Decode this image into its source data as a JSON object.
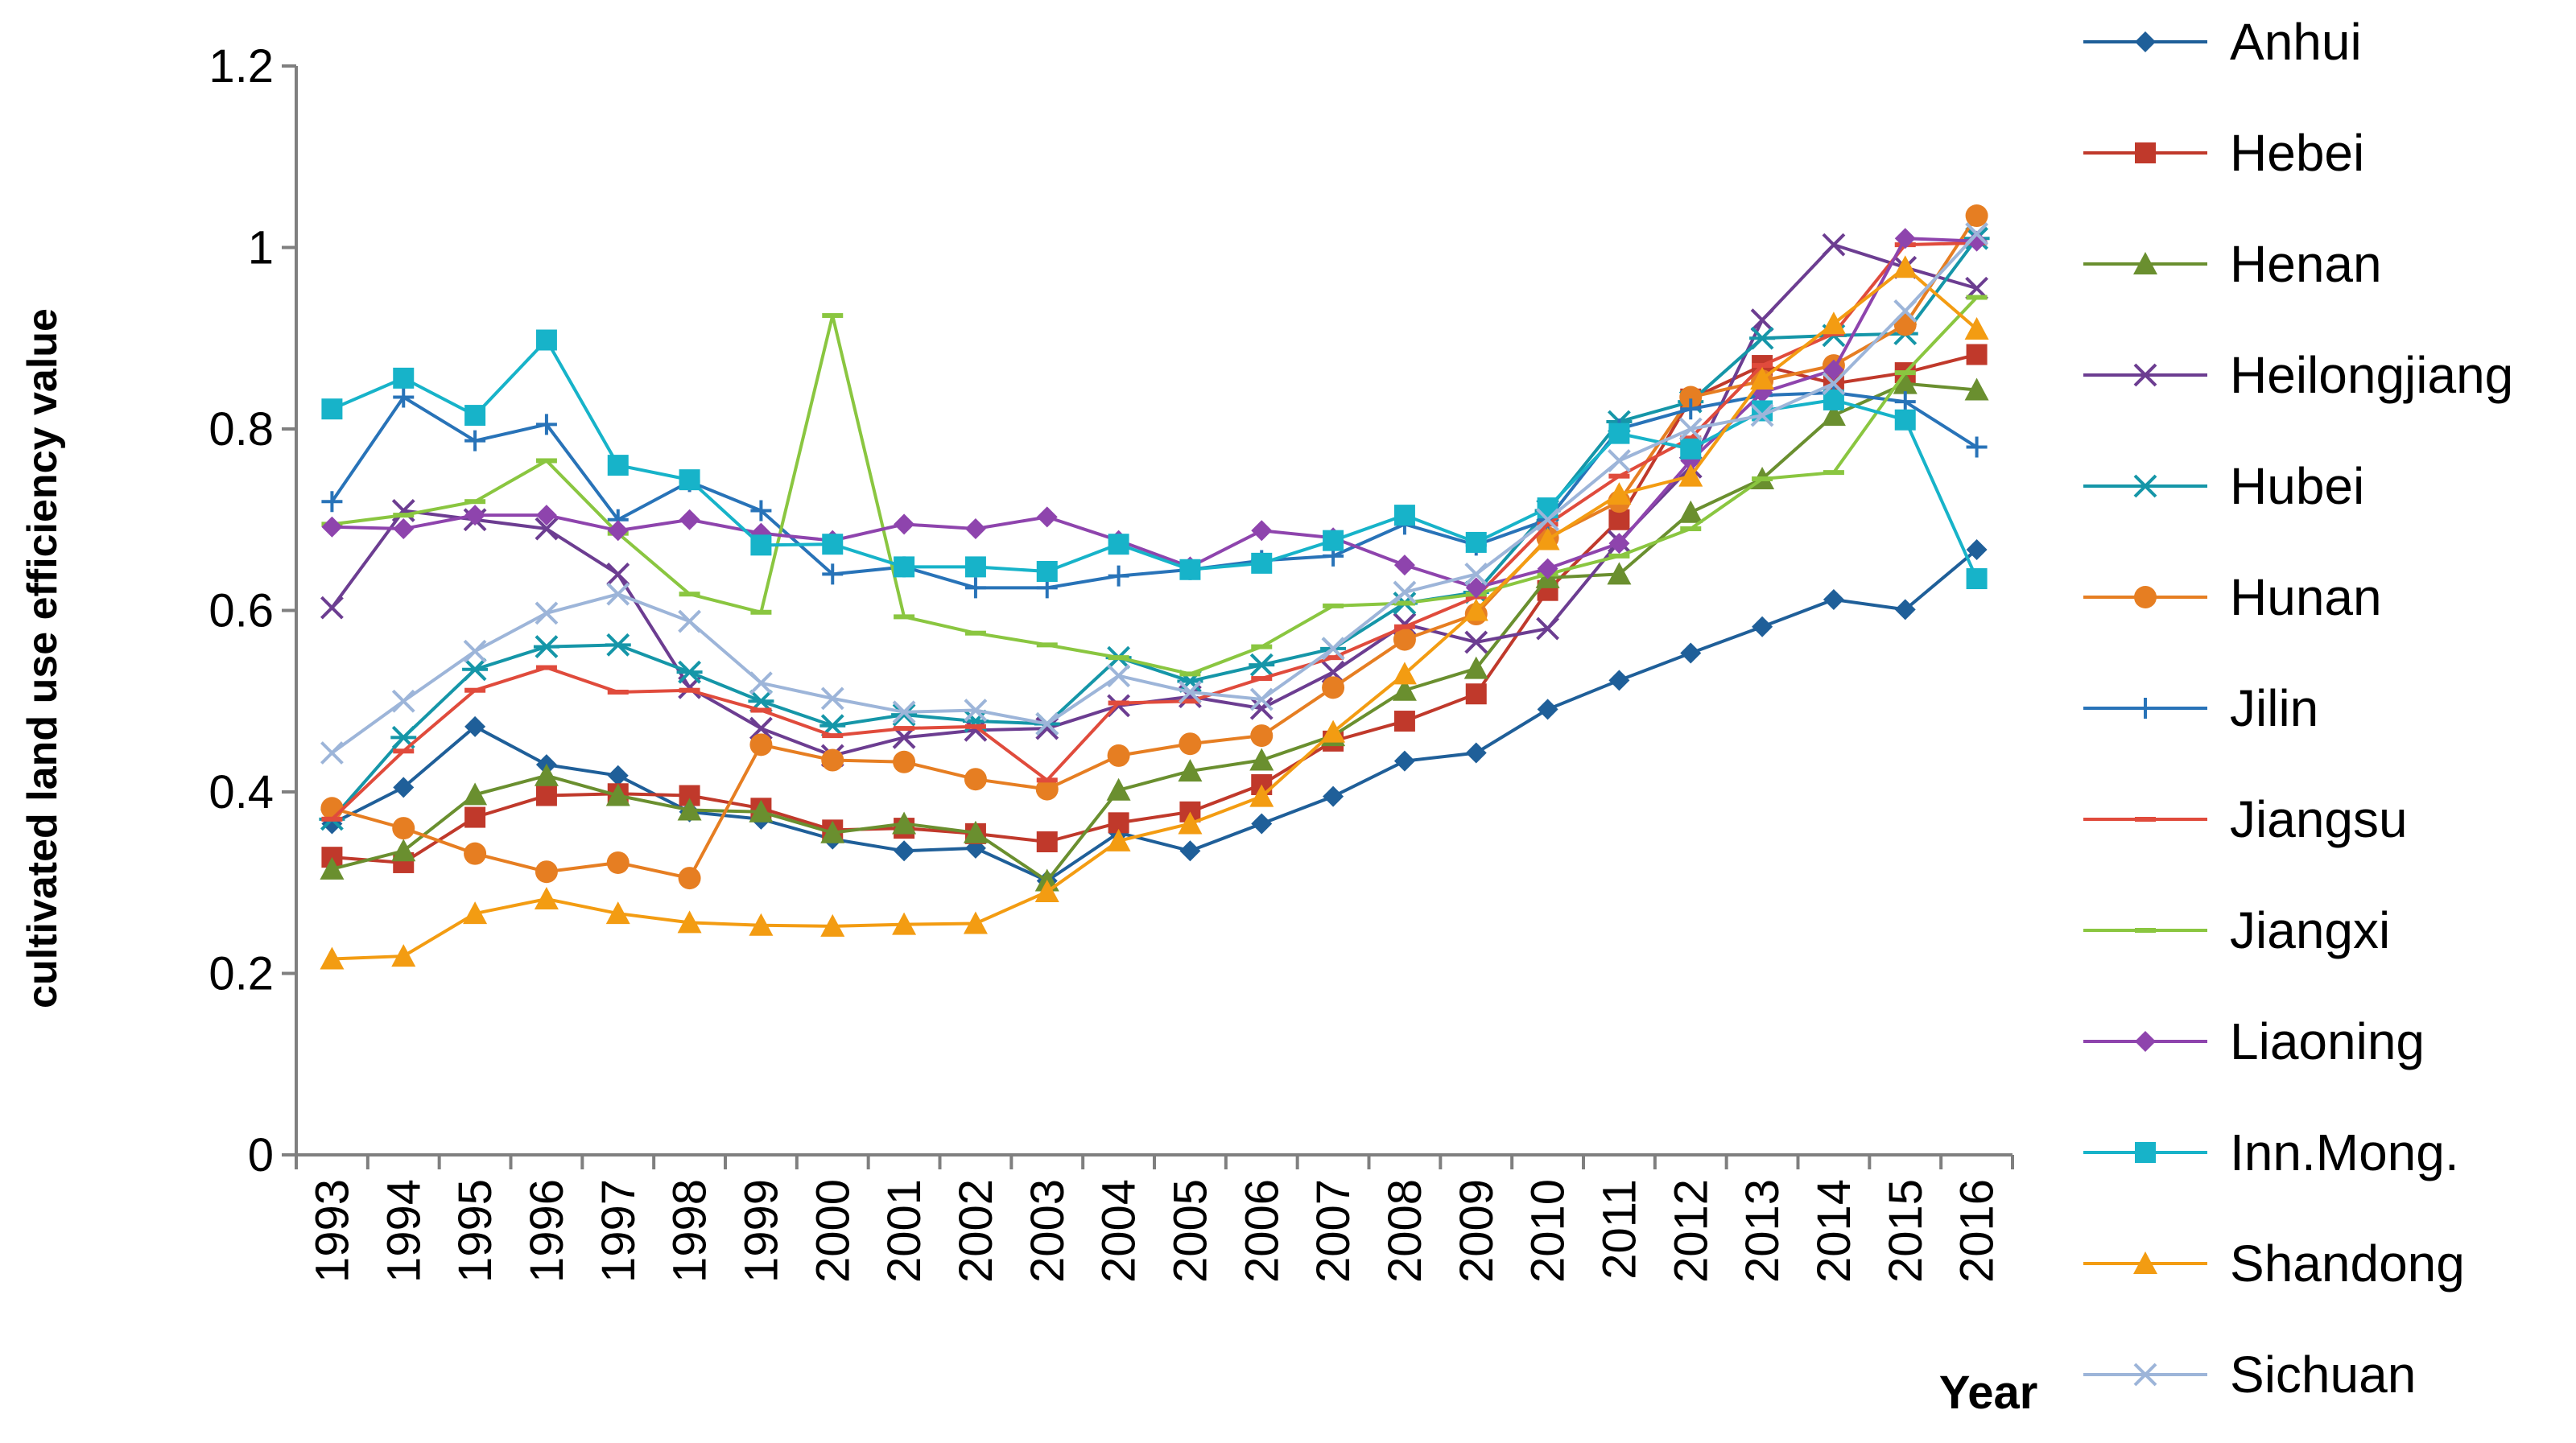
{
  "chart_data": {
    "type": "line",
    "title": "",
    "xlabel": "Year",
    "ylabel": "cultivated land use efficiency value",
    "ylim": [
      0,
      1.2
    ],
    "yticks": [
      "0",
      "0.2",
      "0.4",
      "0.6",
      "0.8",
      "1",
      "1.2"
    ],
    "x": [
      "1993",
      "1994",
      "1995",
      "1996",
      "1997",
      "1998",
      "1999",
      "2000",
      "2001",
      "2002",
      "2003",
      "2004",
      "2005",
      "2006",
      "2007",
      "2008",
      "2009",
      "2010",
      "2011",
      "2012",
      "2013",
      "2014",
      "2015",
      "2016"
    ],
    "legend_position": "right",
    "series": [
      {
        "name": "Anhui",
        "color": "#1f5f99",
        "marker": "diamond",
        "values": [
          0.365,
          0.405,
          0.472,
          0.43,
          0.418,
          0.378,
          0.37,
          0.348,
          0.335,
          0.338,
          0.302,
          0.355,
          0.335,
          0.365,
          0.395,
          0.434,
          0.443,
          0.491,
          0.523,
          0.553,
          0.582,
          0.612,
          0.601,
          0.667
        ]
      },
      {
        "name": "Hebei",
        "color": "#c0392b",
        "marker": "square",
        "values": [
          0.328,
          0.322,
          0.372,
          0.396,
          0.398,
          0.396,
          0.382,
          0.358,
          0.36,
          0.354,
          0.345,
          0.366,
          0.378,
          0.408,
          0.456,
          0.478,
          0.508,
          0.622,
          0.7,
          0.833,
          0.87,
          0.85,
          0.862,
          0.882
        ]
      },
      {
        "name": "Henan",
        "color": "#6a8f2f",
        "marker": "triangle",
        "values": [
          0.315,
          0.335,
          0.397,
          0.418,
          0.396,
          0.38,
          0.378,
          0.355,
          0.365,
          0.355,
          0.302,
          0.402,
          0.423,
          0.435,
          0.462,
          0.512,
          0.536,
          0.636,
          0.64,
          0.708,
          0.745,
          0.815,
          0.85,
          0.843
        ]
      },
      {
        "name": "Heilongjiang",
        "color": "#6c3d91",
        "marker": "x",
        "values": [
          0.603,
          0.71,
          0.7,
          0.69,
          0.64,
          0.515,
          0.47,
          0.44,
          0.46,
          0.468,
          0.47,
          0.495,
          0.505,
          0.492,
          0.532,
          0.585,
          0.565,
          0.58,
          0.676,
          0.758,
          0.92,
          1.003,
          0.978,
          0.955
        ]
      },
      {
        "name": "Hubei",
        "color": "#1596a8",
        "marker": "star",
        "values": [
          0.37,
          0.46,
          0.535,
          0.56,
          0.562,
          0.532,
          0.5,
          0.473,
          0.485,
          0.478,
          0.475,
          0.548,
          0.522,
          0.54,
          0.558,
          0.608,
          0.62,
          0.71,
          0.808,
          0.83,
          0.9,
          0.903,
          0.905,
          1.01
        ]
      },
      {
        "name": "Hunan",
        "color": "#e67e22",
        "marker": "circle",
        "values": [
          0.382,
          0.36,
          0.332,
          0.312,
          0.322,
          0.305,
          0.452,
          0.435,
          0.433,
          0.414,
          0.403,
          0.44,
          0.453,
          0.462,
          0.515,
          0.568,
          0.596,
          0.68,
          0.72,
          0.835,
          0.853,
          0.87,
          0.915,
          1.035
        ]
      },
      {
        "name": "Jilin",
        "color": "#2873b8",
        "marker": "plus",
        "values": [
          0.72,
          0.835,
          0.787,
          0.805,
          0.7,
          0.742,
          0.71,
          0.64,
          0.648,
          0.625,
          0.625,
          0.638,
          0.645,
          0.655,
          0.66,
          0.695,
          0.672,
          0.7,
          0.8,
          0.822,
          0.837,
          0.84,
          0.83,
          0.78
        ]
      },
      {
        "name": "Jiangsu",
        "color": "#e04b3c",
        "marker": "dash",
        "values": [
          0.37,
          0.445,
          0.512,
          0.537,
          0.51,
          0.512,
          0.49,
          0.462,
          0.47,
          0.472,
          0.413,
          0.498,
          0.5,
          0.525,
          0.548,
          0.582,
          0.615,
          0.695,
          0.748,
          0.79,
          0.87,
          0.905,
          1.003,
          1.005
        ]
      },
      {
        "name": "Jiangxi",
        "color": "#8ac640",
        "marker": "dash",
        "values": [
          0.695,
          0.705,
          0.72,
          0.765,
          0.685,
          0.618,
          0.598,
          0.925,
          0.593,
          0.575,
          0.562,
          0.548,
          0.53,
          0.56,
          0.605,
          0.608,
          0.618,
          0.64,
          0.66,
          0.69,
          0.745,
          0.752,
          0.862,
          0.945
        ]
      },
      {
        "name": "Liaoning",
        "color": "#8e44ad",
        "marker": "diamond",
        "values": [
          0.692,
          0.69,
          0.705,
          0.705,
          0.688,
          0.7,
          0.685,
          0.677,
          0.695,
          0.69,
          0.703,
          0.677,
          0.648,
          0.688,
          0.68,
          0.65,
          0.625,
          0.646,
          0.674,
          0.765,
          0.84,
          0.865,
          1.01,
          1.007
        ]
      },
      {
        "name": "Inn.Mong.",
        "color": "#17b3c9",
        "marker": "square",
        "values": [
          0.822,
          0.856,
          0.815,
          0.898,
          0.76,
          0.744,
          0.672,
          0.673,
          0.648,
          0.648,
          0.643,
          0.673,
          0.645,
          0.652,
          0.677,
          0.705,
          0.675,
          0.713,
          0.795,
          0.778,
          0.82,
          0.832,
          0.81,
          0.635
        ]
      },
      {
        "name": "Shandong",
        "color": "#f39c12",
        "marker": "triangle",
        "values": [
          0.216,
          0.219,
          0.266,
          0.282,
          0.266,
          0.256,
          0.253,
          0.252,
          0.254,
          0.255,
          0.29,
          0.346,
          0.365,
          0.395,
          0.466,
          0.53,
          0.6,
          0.678,
          0.728,
          0.748,
          0.855,
          0.916,
          0.978,
          0.91
        ]
      },
      {
        "name": "Sichuan",
        "color": "#9db5d9",
        "marker": "x",
        "values": [
          0.443,
          0.5,
          0.555,
          0.597,
          0.618,
          0.588,
          0.52,
          0.503,
          0.488,
          0.49,
          0.475,
          0.528,
          0.51,
          0.502,
          0.558,
          0.62,
          0.64,
          0.7,
          0.765,
          0.8,
          0.815,
          0.85,
          0.93,
          1.015
        ]
      }
    ]
  }
}
